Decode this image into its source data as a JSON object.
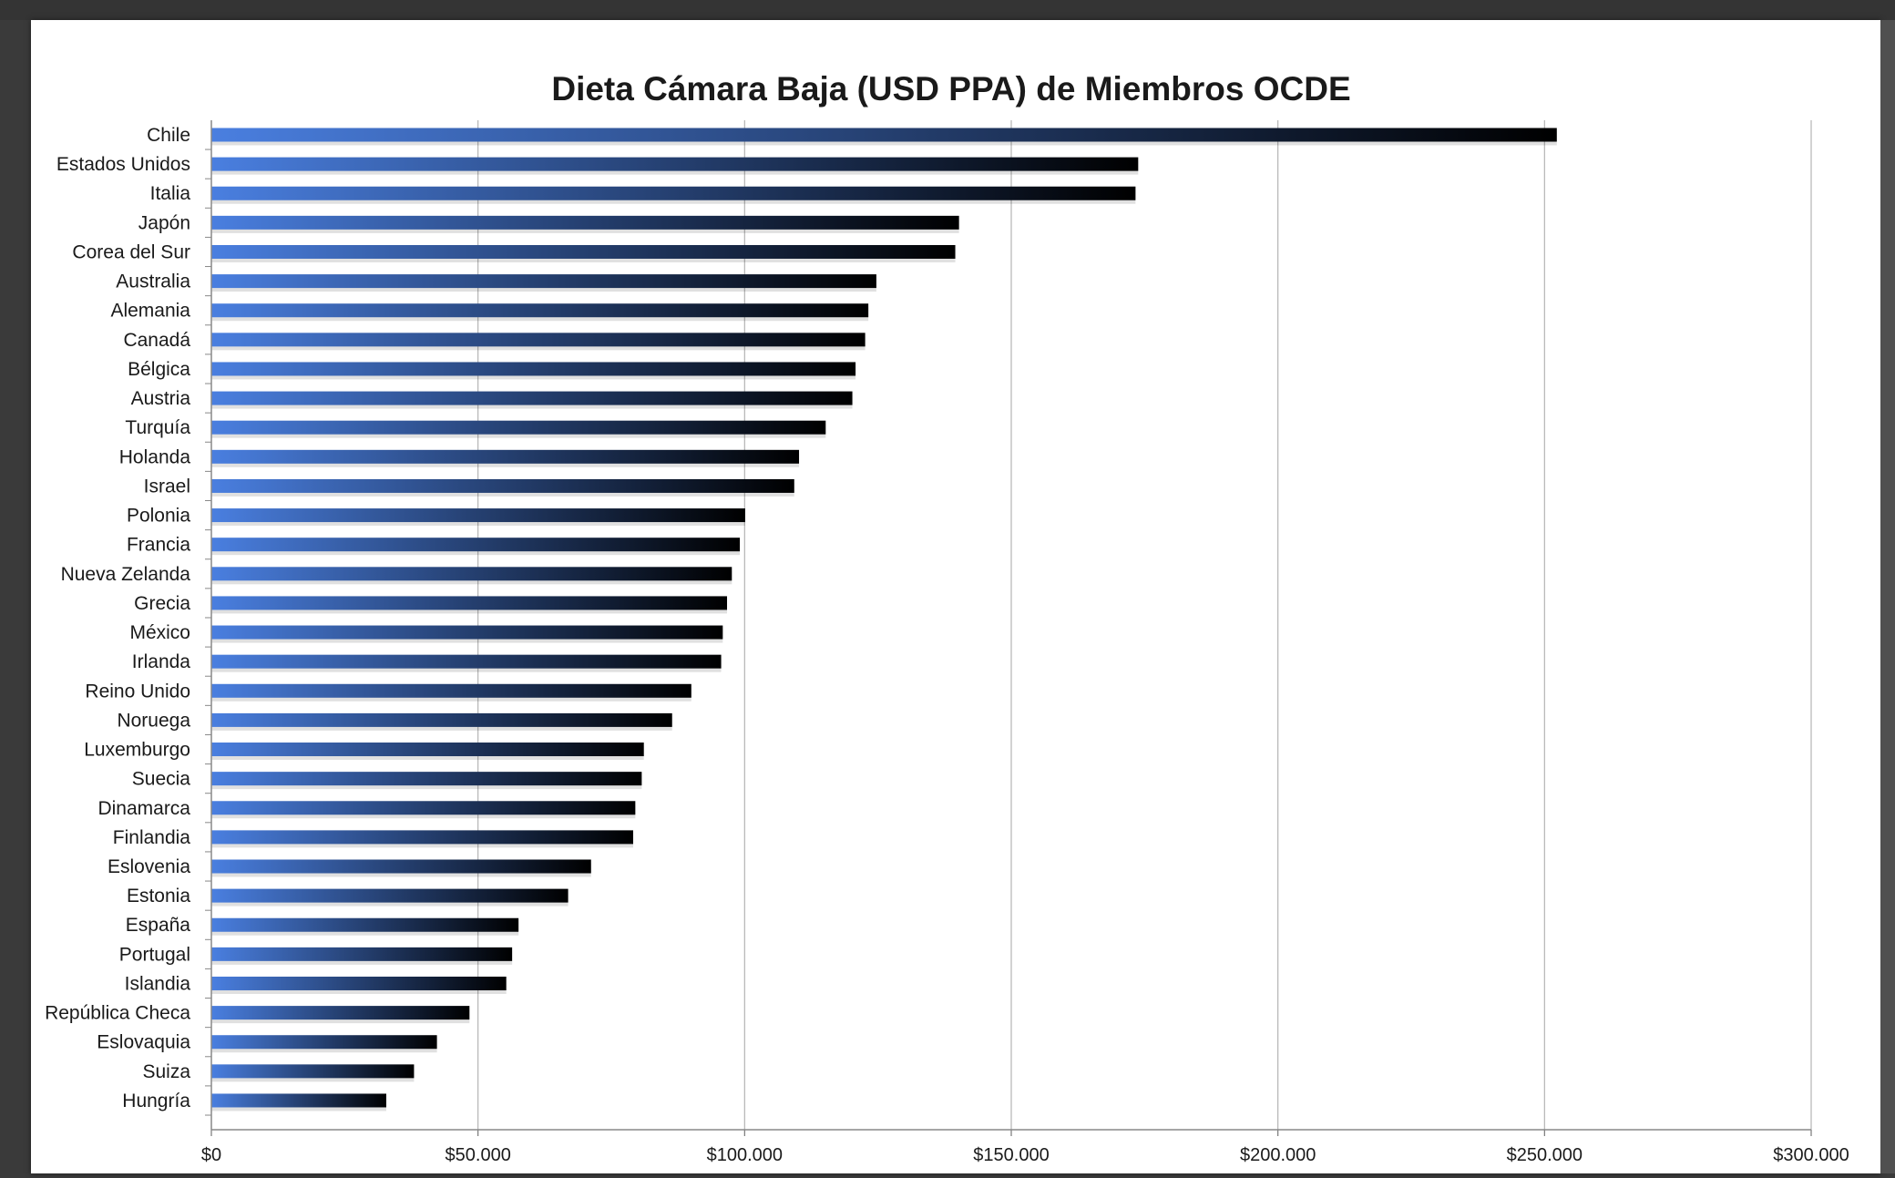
{
  "colors": {
    "background": "#3a3a3a",
    "plot_background": "#ffffff",
    "bar_start": "#4a7fe0",
    "bar_end": "#000000",
    "gridline": "#b4b4b4"
  },
  "chart_data": {
    "type": "bar",
    "orientation": "horizontal",
    "title": "Dieta Cámara Baja (USD PPA) de Miembros OCDE",
    "xlabel": "",
    "ylabel": "",
    "xlim": [
      0,
      300000
    ],
    "x_ticks": [
      0,
      50000,
      100000,
      150000,
      200000,
      250000,
      300000
    ],
    "x_tick_labels": [
      "$0",
      "$50.000",
      "$100.000",
      "$150.000",
      "$200.000",
      "$250.000",
      "$300.000"
    ],
    "grid": true,
    "legend": "none",
    "categories": [
      "Chile",
      "Estados Unidos",
      "Italia",
      "Japón",
      "Corea del Sur",
      "Australia",
      "Alemania",
      "Canadá",
      "Bélgica",
      "Austria",
      "Turquía",
      "Holanda",
      "Israel",
      "Polonia",
      "Francia",
      "Nueva Zelanda",
      "Grecia",
      "México",
      "Irlanda",
      "Reino Unido",
      "Noruega",
      "Luxemburgo",
      "Suecia",
      "Dinamarca",
      "Finlandia",
      "Eslovenia",
      "Estonia",
      "España",
      "Portugal",
      "Islandia",
      "República Checa",
      "Eslovaquia",
      "Suiza",
      "Hungría"
    ],
    "values": [
      252300,
      173800,
      173300,
      140200,
      139500,
      124700,
      123200,
      122600,
      120800,
      120200,
      115200,
      110200,
      109300,
      100100,
      99100,
      97600,
      96700,
      95900,
      95600,
      90000,
      86400,
      81100,
      80700,
      79500,
      79100,
      71200,
      66900,
      57600,
      56400,
      55300,
      48400,
      42300,
      38000,
      32800
    ]
  }
}
